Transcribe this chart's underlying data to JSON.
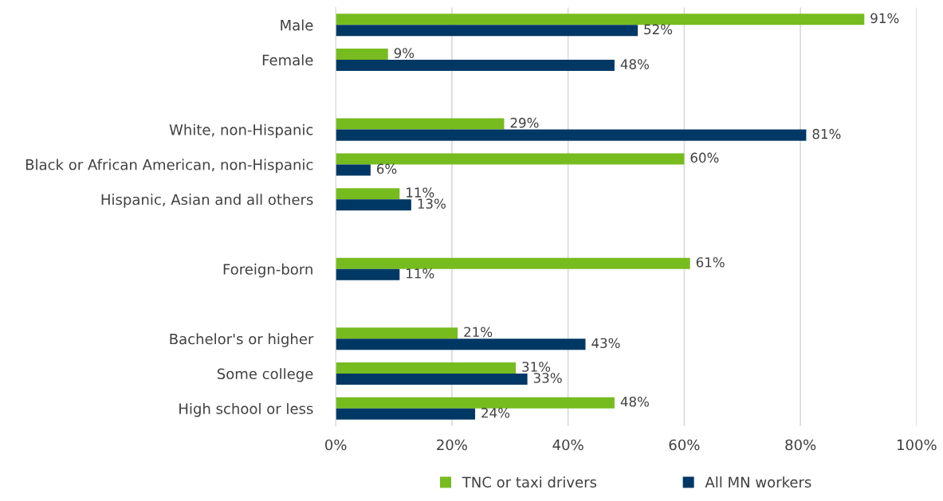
{
  "chart_data": {
    "type": "bar",
    "orientation": "horizontal",
    "categories": [
      "Male",
      "Female",
      null,
      "White, non-Hispanic",
      "Black or African American, non-Hispanic",
      "Hispanic, Asian and all others",
      null,
      "Foreign-born",
      null,
      "Bachelor's or higher",
      "Some college",
      "High school or less"
    ],
    "series": [
      {
        "name": "TNC or taxi drivers",
        "color": "#77bc1f",
        "values": [
          91,
          9,
          null,
          29,
          60,
          11,
          null,
          61,
          null,
          21,
          31,
          48
        ],
        "value_labels": [
          "91%",
          "9%",
          null,
          "29%",
          "60%",
          "11%",
          null,
          "61%",
          null,
          "21%",
          "31%",
          "48%"
        ]
      },
      {
        "name": "All MN workers",
        "color": "#003865",
        "values": [
          52,
          48,
          null,
          81,
          6,
          13,
          null,
          11,
          null,
          43,
          33,
          24
        ],
        "value_labels": [
          "52%",
          "48%",
          null,
          "81%",
          "6%",
          "13%",
          null,
          "11%",
          null,
          "43%",
          "33%",
          "24%"
        ]
      }
    ],
    "xlim": [
      0,
      100
    ],
    "xticks": [
      {
        "value": 0,
        "label": "0%"
      },
      {
        "value": 20,
        "label": "20%"
      },
      {
        "value": 40,
        "label": "40%"
      },
      {
        "value": 60,
        "label": "60%"
      },
      {
        "value": 80,
        "label": "80%"
      },
      {
        "value": 100,
        "label": "100%"
      }
    ],
    "grid": "x",
    "legend": "bottom"
  }
}
